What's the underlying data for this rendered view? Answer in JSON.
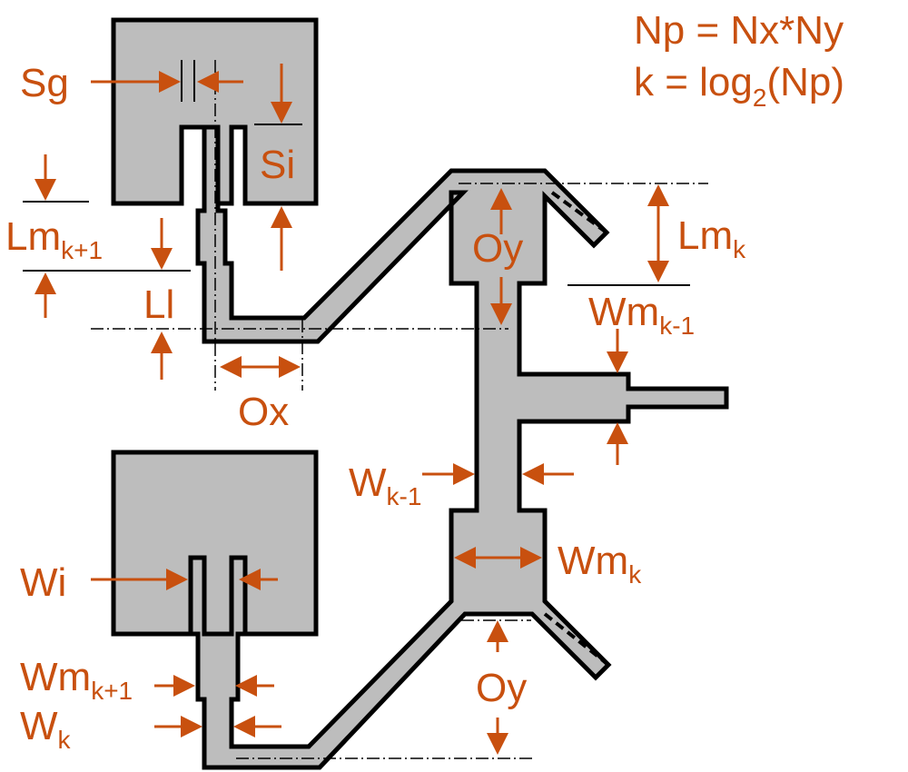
{
  "formulas": {
    "np": "Np = Nx*Ny",
    "k_main": "k = log",
    "k_sub": "2",
    "k_tail": "(Np)"
  },
  "labels": {
    "sg": "Sg",
    "si": "Si",
    "lm_k1_main": "Lm",
    "lm_k1_sub": "k+1",
    "ll": "Ll",
    "ox": "Ox",
    "oy_top": "Oy",
    "lm_k_main": "Lm",
    "lm_k_sub": "k",
    "wm_km1_main": "Wm",
    "wm_km1_sub": "k-1",
    "w_km1_main": "W",
    "w_km1_sub": "k-1",
    "wm_k_main": "Wm",
    "wm_k_sub": "k",
    "wi": "Wi",
    "wm_k1_main": "Wm",
    "wm_k1_sub": "k+1",
    "w_k_main": "W",
    "w_k_sub": "k",
    "oy_bottom": "Oy"
  },
  "colors": {
    "annotation": "#c8500f",
    "fill": "#bdbdbd",
    "outline": "#000000"
  }
}
